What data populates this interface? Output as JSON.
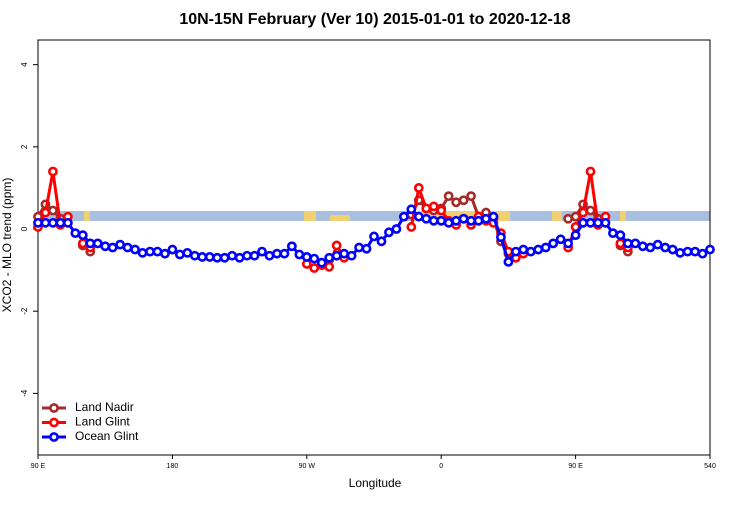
{
  "chart_data": {
    "type": "line",
    "title": "10N-15N February (Ver 10)   2015-01-01 to 2020-12-18",
    "x_label": "Longitude",
    "y_label": "XCO2 - MLO trend (ppm)",
    "x": [
      90,
      95,
      100,
      105,
      110,
      115,
      120,
      125,
      130,
      135,
      140,
      145,
      150,
      155,
      160,
      165,
      170,
      175,
      180,
      185,
      190,
      195,
      200,
      205,
      210,
      215,
      220,
      225,
      230,
      235,
      240,
      245,
      250,
      255,
      260,
      265,
      270,
      275,
      280,
      285,
      290,
      295,
      300,
      305,
      310,
      315,
      320,
      325,
      330,
      335,
      340,
      345,
      350,
      355,
      360,
      365,
      370,
      375,
      380,
      385,
      390,
      395,
      400,
      405,
      410,
      415,
      420,
      425,
      430,
      435,
      440,
      445,
      450,
      455,
      460,
      465,
      470,
      475,
      480,
      485,
      490,
      495,
      500,
      505,
      510,
      515,
      520,
      525,
      530,
      535,
      540
    ],
    "series": [
      {
        "name": "Land Nadir",
        "color": "#a52a2a",
        "values": [
          0.3,
          0.6,
          0.45,
          0.25,
          null,
          null,
          -0.4,
          -0.55,
          null,
          null,
          null,
          null,
          null,
          null,
          null,
          null,
          null,
          null,
          null,
          null,
          null,
          null,
          null,
          null,
          null,
          null,
          null,
          null,
          null,
          null,
          null,
          null,
          null,
          null,
          null,
          null,
          null,
          null,
          null,
          -0.75,
          -0.65,
          null,
          null,
          null,
          null,
          null,
          null,
          null,
          null,
          null,
          0.35,
          0.7,
          0.5,
          0.45,
          0.5,
          0.8,
          0.65,
          0.7,
          0.8,
          0.3,
          0.4,
          0.25,
          -0.3,
          -0.6,
          -0.65,
          null,
          null,
          null,
          null,
          null,
          null,
          0.25,
          0.3,
          0.6,
          0.45,
          0.25,
          null,
          null,
          -0.4,
          -0.55,
          null,
          null,
          null,
          null,
          null,
          null,
          null,
          null,
          null,
          null,
          null
        ]
      },
      {
        "name": "Land Glint",
        "color": "#ff0000",
        "values": [
          0.05,
          0.4,
          1.4,
          0.1,
          0.3,
          null,
          -0.35,
          -0.45,
          null,
          null,
          null,
          null,
          null,
          null,
          null,
          null,
          null,
          null,
          null,
          null,
          null,
          null,
          null,
          null,
          null,
          null,
          null,
          null,
          null,
          null,
          null,
          null,
          null,
          null,
          null,
          null,
          -0.85,
          -0.95,
          -0.88,
          -0.92,
          -0.4,
          -0.7,
          null,
          null,
          null,
          null,
          null,
          null,
          null,
          null,
          0.05,
          1.0,
          0.5,
          0.55,
          0.45,
          0.2,
          0.1,
          0.25,
          0.1,
          0.3,
          0.2,
          0.15,
          -0.1,
          -0.55,
          -0.7,
          -0.6,
          null,
          null,
          null,
          null,
          null,
          -0.45,
          0.05,
          0.4,
          1.4,
          0.1,
          0.3,
          null,
          -0.35,
          -0.45,
          null,
          null,
          null,
          null,
          null,
          null,
          null,
          null,
          null,
          null,
          null
        ]
      },
      {
        "name": "Ocean Glint",
        "color": "#0000ff",
        "values": [
          0.15,
          0.15,
          0.15,
          0.15,
          0.15,
          -0.1,
          -0.15,
          -0.35,
          -0.35,
          -0.42,
          -0.45,
          -0.38,
          -0.45,
          -0.5,
          -0.58,
          -0.55,
          -0.55,
          -0.6,
          -0.5,
          -0.62,
          -0.58,
          -0.65,
          -0.68,
          -0.68,
          -0.7,
          -0.7,
          -0.65,
          -0.7,
          -0.65,
          -0.65,
          -0.55,
          -0.65,
          -0.6,
          -0.6,
          -0.42,
          -0.62,
          -0.68,
          -0.72,
          -0.82,
          -0.7,
          -0.65,
          -0.6,
          -0.65,
          -0.45,
          -0.48,
          -0.18,
          -0.3,
          -0.08,
          0.0,
          0.3,
          0.48,
          0.3,
          0.25,
          0.2,
          0.2,
          0.15,
          0.2,
          0.25,
          0.2,
          0.2,
          0.25,
          0.3,
          -0.2,
          -0.8,
          -0.55,
          -0.5,
          -0.55,
          -0.5,
          -0.45,
          -0.35,
          -0.25,
          -0.35,
          -0.15,
          0.15,
          0.15,
          0.15,
          0.15,
          -0.1,
          -0.15,
          -0.35,
          -0.35,
          -0.42,
          -0.45,
          -0.38,
          -0.45,
          -0.5,
          -0.58,
          -0.55,
          -0.55,
          -0.6,
          -0.5
        ]
      }
    ],
    "xlim": [
      90,
      540
    ],
    "xticks": [
      {
        "value": 90,
        "label": "90 E"
      },
      180,
      {
        "value": 270,
        "label": "90 W"
      },
      {
        "value": 360,
        "label": "0"
      },
      {
        "value": 450,
        "label": "90 E"
      },
      540
    ],
    "ylim": [
      -5.5,
      4.6
    ],
    "yticks": [
      -4,
      -2,
      0,
      2,
      4
    ],
    "legend": "bottom-left"
  }
}
